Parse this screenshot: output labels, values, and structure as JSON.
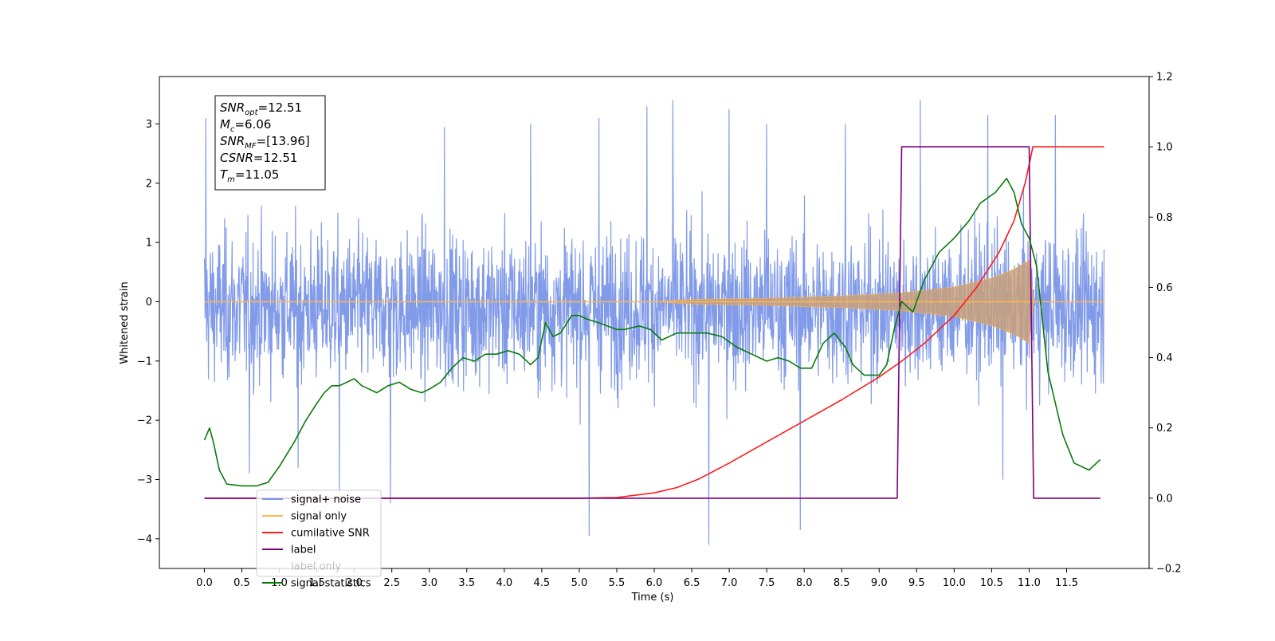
{
  "chart_data": {
    "type": "line",
    "title": "",
    "xlabel": "Time (s)",
    "ylabel": "Whitened strain",
    "y2label": "",
    "xlim": [
      -0.6,
      12.6
    ],
    "ylim": [
      -4.5,
      3.8
    ],
    "y2lim": [
      -0.2,
      1.2
    ],
    "xticks": [
      0.0,
      0.5,
      1.0,
      1.5,
      2.0,
      2.5,
      3.0,
      3.5,
      4.0,
      4.5,
      5.0,
      5.5,
      6.0,
      6.5,
      7.0,
      7.5,
      8.0,
      8.5,
      9.0,
      9.5,
      10.0,
      10.5,
      11.0,
      11.5
    ],
    "xtick_labels": [
      "0.0",
      "0.5",
      "1.0",
      "1.5",
      "2.0",
      "2.5",
      "3.0",
      "3.5",
      "4.0",
      "4.5",
      "5.0",
      "5.5",
      "6.0",
      "6.5",
      "7.0",
      "7.5",
      "8.0",
      "8.5",
      "9.0",
      "9.5",
      "10.0",
      "10.5",
      "11.0",
      "11.5"
    ],
    "yticks": [
      -4,
      -3,
      -2,
      -1,
      0,
      1,
      2,
      3
    ],
    "ytick_labels": [
      "−4",
      "−3",
      "−2",
      "−1",
      "0",
      "1",
      "2",
      "3"
    ],
    "y2ticks": [
      -0.2,
      0.0,
      0.2,
      0.4,
      0.6,
      0.8,
      1.0,
      1.2
    ],
    "y2tick_labels": [
      "−0.2",
      "0.0",
      "0.2",
      "0.4",
      "0.6",
      "0.8",
      "1.0",
      "1.2"
    ],
    "grid": false,
    "legend_position": "lower-left",
    "annotation": [
      {
        "main": "SNR",
        "sub": "opt",
        "value": "=12.51"
      },
      {
        "main": "M",
        "sub": "c",
        "value": "=6.06"
      },
      {
        "main": "SNR",
        "sub": "MF",
        "value": "=[13.96]"
      },
      {
        "main": "CSNR",
        "sub": "",
        "value": "=12.51"
      },
      {
        "main": "T",
        "sub": "m",
        "value": "=11.05"
      }
    ],
    "series": [
      {
        "name": "signal+ noise",
        "axis": "left",
        "color": "#7a96e8",
        "kind": "noise",
        "x_range": [
          0.0,
          12.0
        ],
        "typical_range": [
          -1.7,
          1.5
        ],
        "spikes": [
          {
            "x": 0.02,
            "y": 3.1
          },
          {
            "x": 0.6,
            "y": -2.9
          },
          {
            "x": 1.25,
            "y": -2.8
          },
          {
            "x": 1.8,
            "y": -3.2
          },
          {
            "x": 2.48,
            "y": -3.4
          },
          {
            "x": 3.2,
            "y": 2.95
          },
          {
            "x": 4.35,
            "y": 3.0
          },
          {
            "x": 5.13,
            "y": -3.95
          },
          {
            "x": 5.26,
            "y": 3.1
          },
          {
            "x": 5.9,
            "y": 3.3
          },
          {
            "x": 6.25,
            "y": 3.4
          },
          {
            "x": 6.73,
            "y": -4.1
          },
          {
            "x": 7.0,
            "y": 3.25
          },
          {
            "x": 7.5,
            "y": 3.0
          },
          {
            "x": 7.95,
            "y": -3.85
          },
          {
            "x": 8.55,
            "y": 3.0
          },
          {
            "x": 9.55,
            "y": 3.4
          },
          {
            "x": 10.45,
            "y": 3.15
          },
          {
            "x": 10.65,
            "y": -3.0
          },
          {
            "x": 11.35,
            "y": 3.15
          }
        ]
      },
      {
        "name": "signal only",
        "axis": "left",
        "color": "#ffb74d",
        "kind": "chirp",
        "envelope": [
          [
            0.0,
            0.0
          ],
          [
            6.0,
            0.0
          ],
          [
            6.5,
            0.04
          ],
          [
            7.5,
            0.06
          ],
          [
            8.5,
            0.1
          ],
          [
            9.3,
            0.15
          ],
          [
            10.0,
            0.25
          ],
          [
            10.5,
            0.4
          ],
          [
            10.8,
            0.55
          ],
          [
            11.0,
            0.7
          ],
          [
            11.06,
            0.0
          ],
          [
            12.0,
            0.0
          ]
        ]
      },
      {
        "name": "cumilative SNR",
        "axis": "right",
        "color": "#ff1a1a",
        "x": [
          0.0,
          5.0,
          5.5,
          6.0,
          6.3,
          6.6,
          7.0,
          7.5,
          8.0,
          8.5,
          9.0,
          9.3,
          9.6,
          10.0,
          10.3,
          10.6,
          10.8,
          10.95,
          11.05,
          12.0
        ],
        "y": [
          0.0,
          0.0,
          0.002,
          0.015,
          0.03,
          0.055,
          0.1,
          0.16,
          0.22,
          0.28,
          0.345,
          0.39,
          0.44,
          0.52,
          0.6,
          0.7,
          0.79,
          0.9,
          1.0,
          1.0
        ]
      },
      {
        "name": "label",
        "axis": "right",
        "color": "#800080",
        "x": [
          0.0,
          9.24,
          9.3,
          11.0,
          11.06,
          11.95
        ],
        "y": [
          0.0,
          0.0,
          1.0,
          1.0,
          0.0,
          0.0
        ]
      },
      {
        "name": "label only",
        "axis": "right",
        "color": "#800080",
        "hidden": true,
        "x": [],
        "y": []
      },
      {
        "name": "signal statistics",
        "axis": "right",
        "color": "#0a7a0a",
        "x": [
          0.0,
          0.07,
          0.12,
          0.2,
          0.3,
          0.5,
          0.7,
          0.85,
          1.0,
          1.2,
          1.35,
          1.5,
          1.6,
          1.7,
          1.8,
          2.0,
          2.1,
          2.2,
          2.3,
          2.45,
          2.6,
          2.75,
          2.9,
          3.0,
          3.15,
          3.3,
          3.45,
          3.6,
          3.75,
          3.9,
          4.05,
          4.2,
          4.35,
          4.45,
          4.55,
          4.65,
          4.75,
          4.9,
          5.0,
          5.1,
          5.25,
          5.5,
          5.6,
          5.8,
          5.95,
          6.1,
          6.3,
          6.5,
          6.7,
          6.9,
          7.1,
          7.3,
          7.5,
          7.65,
          7.8,
          7.95,
          8.1,
          8.25,
          8.4,
          8.55,
          8.65,
          8.8,
          9.0,
          9.1,
          9.2,
          9.3,
          9.45,
          9.6,
          9.8,
          10.0,
          10.2,
          10.35,
          10.55,
          10.7,
          10.8,
          10.9,
          11.0,
          11.1,
          11.25,
          11.45,
          11.6,
          11.8,
          11.95
        ],
        "y": [
          0.165,
          0.2,
          0.16,
          0.08,
          0.04,
          0.035,
          0.035,
          0.045,
          0.09,
          0.16,
          0.22,
          0.27,
          0.3,
          0.32,
          0.32,
          0.34,
          0.32,
          0.31,
          0.3,
          0.32,
          0.33,
          0.31,
          0.3,
          0.31,
          0.33,
          0.37,
          0.4,
          0.39,
          0.41,
          0.41,
          0.42,
          0.41,
          0.38,
          0.4,
          0.5,
          0.46,
          0.47,
          0.52,
          0.52,
          0.51,
          0.5,
          0.48,
          0.48,
          0.49,
          0.48,
          0.45,
          0.47,
          0.47,
          0.47,
          0.46,
          0.43,
          0.41,
          0.39,
          0.4,
          0.39,
          0.37,
          0.37,
          0.44,
          0.47,
          0.43,
          0.38,
          0.35,
          0.35,
          0.38,
          0.48,
          0.56,
          0.53,
          0.62,
          0.7,
          0.74,
          0.79,
          0.84,
          0.87,
          0.91,
          0.87,
          0.78,
          0.74,
          0.66,
          0.36,
          0.18,
          0.1,
          0.08,
          0.11
        ]
      }
    ]
  }
}
